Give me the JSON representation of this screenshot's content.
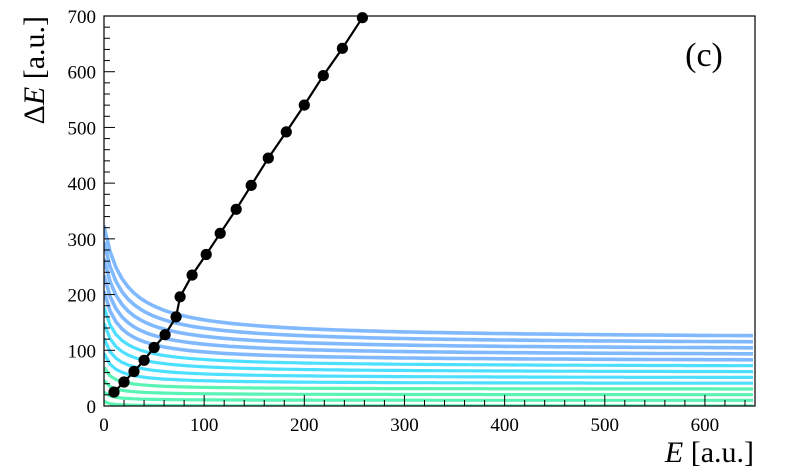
{
  "chart_data": {
    "type": "scatter",
    "panel_label": "(c)",
    "xlabel_symbol": "E",
    "xlabel_unit": " [a.u.]",
    "ylabel_symbol": "ΔE",
    "ylabel_unit": " [a.u.]",
    "xlim": [
      0,
      650
    ],
    "ylim": [
      0,
      700
    ],
    "x_ticks": [
      0,
      100,
      200,
      300,
      400,
      500,
      600
    ],
    "y_ticks": [
      0,
      100,
      200,
      300,
      400,
      500,
      600,
      700
    ],
    "grid": false,
    "legend": "none",
    "background_density_color": "#5a18e8",
    "dense_band_colors": [
      "#1a7fff",
      "#00d2ff",
      "#30f0a0"
    ],
    "marker_color": "#000000",
    "series": [
      {
        "points": [
          [
            10,
            25
          ],
          [
            20,
            43
          ],
          [
            30,
            62
          ],
          [
            40,
            82
          ],
          [
            50,
            105
          ],
          [
            61,
            128
          ],
          [
            72,
            160
          ],
          [
            76,
            196
          ],
          [
            88,
            235
          ],
          [
            102,
            272
          ],
          [
            116,
            310
          ],
          [
            132,
            353
          ],
          [
            147,
            396
          ],
          [
            164,
            445
          ],
          [
            182,
            492
          ],
          [
            200,
            540
          ],
          [
            219,
            593
          ],
          [
            238,
            642
          ],
          [
            258,
            697
          ]
        ]
      }
    ]
  }
}
